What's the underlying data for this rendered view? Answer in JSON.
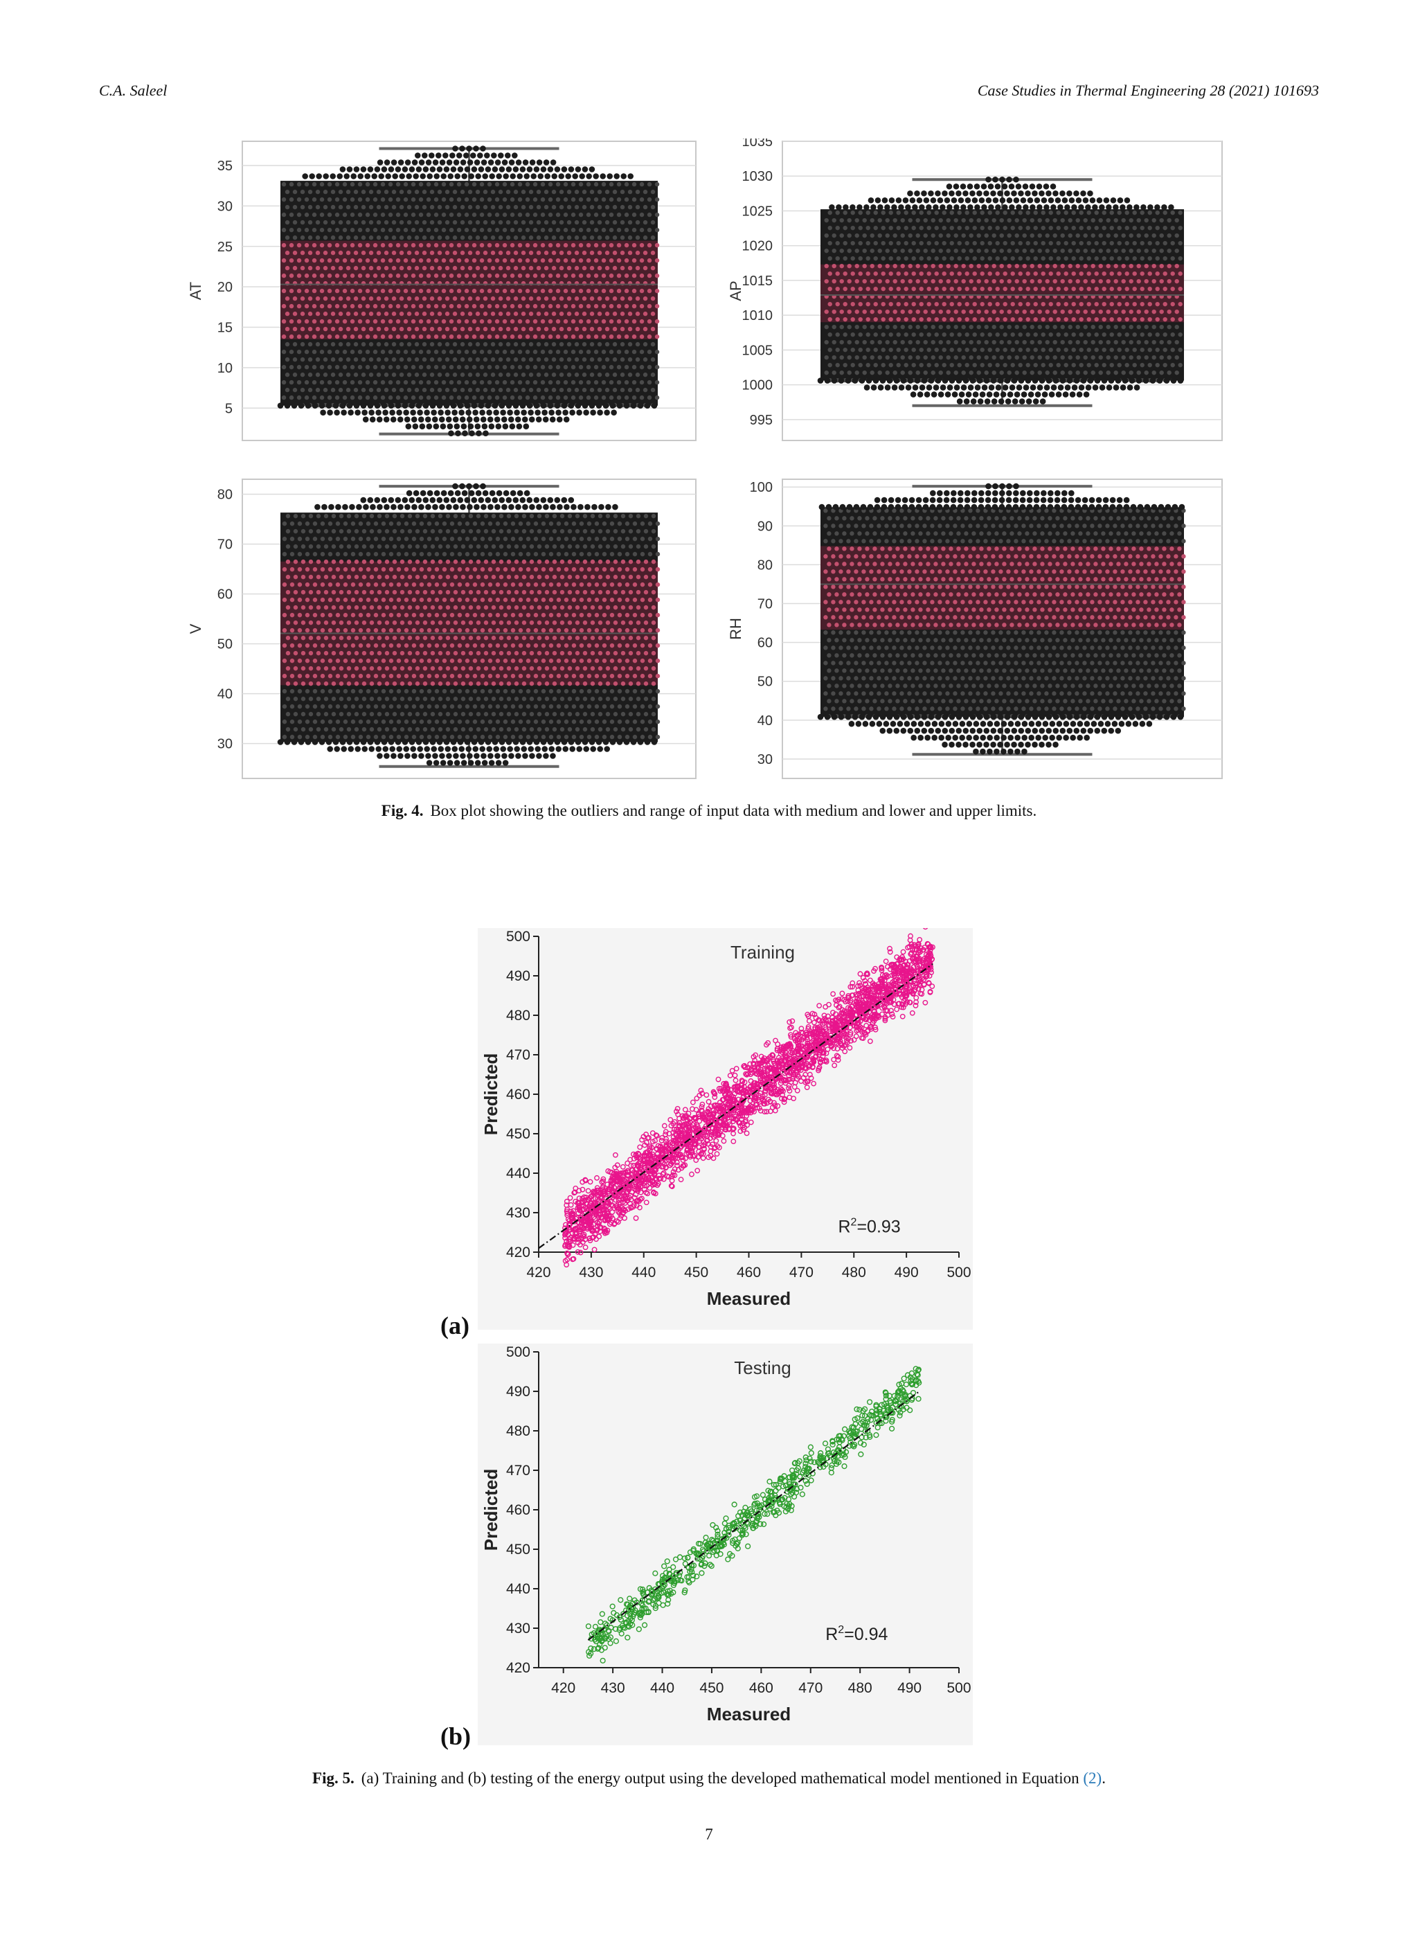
{
  "header": {
    "author": "C.A. Saleel",
    "journal": "Case Studies in Thermal Engineering 28 (2021) 101693"
  },
  "fig4": {
    "label": "Fig. 4.",
    "text": "Box plot showing the outliers and range of input data with medium and lower and upper limits.",
    "charts": [
      {
        "type": "box-swarm",
        "ylabel": "AT",
        "yticks": [
          "5",
          "10",
          "15",
          "20",
          "25",
          "30",
          "35"
        ],
        "ylim": [
          1,
          38
        ],
        "whisker_low": 1.8,
        "q1": 13.5,
        "q3": 25.7,
        "whisker_high": 37.1,
        "median": 20.3
      },
      {
        "type": "box-swarm",
        "ylabel": "AP",
        "yticks": [
          "995",
          "1000",
          "1005",
          "1010",
          "1015",
          "1020",
          "1025",
          "1030",
          "1035"
        ],
        "ylim": [
          992,
          1035
        ],
        "whisker_low": 997,
        "q1": 1009,
        "q3": 1017.3,
        "whisker_high": 1029.5,
        "median": 1012.9
      },
      {
        "type": "box-swarm",
        "ylabel": "V",
        "yticks": [
          "30",
          "40",
          "50",
          "60",
          "70",
          "80"
        ],
        "ylim": [
          23,
          83
        ],
        "whisker_low": 25.4,
        "q1": 41.7,
        "q3": 66.5,
        "whisker_high": 81.6,
        "median": 52.1
      },
      {
        "type": "box-swarm",
        "ylabel": "RH",
        "yticks": [
          "30",
          "40",
          "50",
          "60",
          "70",
          "80",
          "90",
          "100"
        ],
        "ylim": [
          25,
          102
        ],
        "whisker_low": 31.2,
        "q1": 63.3,
        "q3": 84.8,
        "whisker_high": 100.2,
        "median": 75
      }
    ]
  },
  "fig5": {
    "label": "Fig. 5.",
    "text_before": "(a) Training and (b) testing of the energy output using the developed mathematical model mentioned in Equation ",
    "link": "(2)",
    "text_after": ".",
    "panel_a": "(a)",
    "panel_b": "(b)"
  },
  "chart_data": [
    {
      "type": "scatter",
      "title": "Training",
      "xlabel": "Measured",
      "ylabel": "Predicted",
      "xlim": [
        420,
        500
      ],
      "ylim": [
        420,
        500
      ],
      "xticks": [
        "420",
        "430",
        "440",
        "450",
        "460",
        "470",
        "480",
        "490",
        "500"
      ],
      "yticks": [
        "420",
        "430",
        "440",
        "450",
        "460",
        "470",
        "480",
        "490",
        "500"
      ],
      "r2_base": "R",
      "r2_sup": "2",
      "r2_value": "=0.93",
      "r2": 0.93,
      "color": "#e8158c",
      "fit_line": [
        [
          420,
          421
        ],
        [
          495,
          493
        ]
      ]
    },
    {
      "type": "scatter",
      "title": "Testing",
      "xlabel": "Measured",
      "ylabel": "Predicted",
      "xlim": [
        415,
        500
      ],
      "ylim": [
        420,
        500
      ],
      "xticks": [
        "420",
        "430",
        "440",
        "450",
        "460",
        "470",
        "480",
        "490",
        "500"
      ],
      "yticks": [
        "420",
        "430",
        "440",
        "450",
        "460",
        "470",
        "480",
        "490",
        "500"
      ],
      "r2_base": "R",
      "r2_sup": "2",
      "r2_value": "=0.94",
      "r2": 0.94,
      "color": "#2e9e2e",
      "fit_line": [
        [
          425,
          427
        ],
        [
          492,
          490
        ]
      ]
    }
  ],
  "page_number": "7"
}
